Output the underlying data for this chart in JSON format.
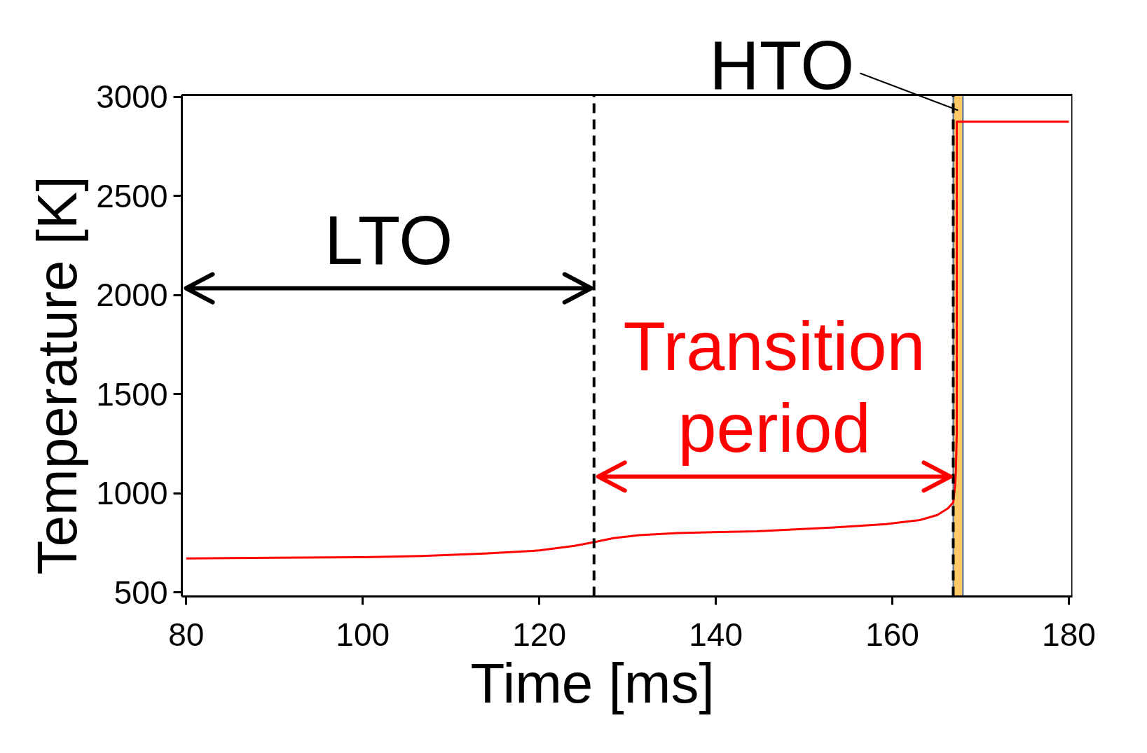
{
  "chart_data": {
    "type": "line",
    "xlabel": "Time [ms]",
    "ylabel": "Temperature [K]",
    "xlim": [
      79.5,
      180.4
    ],
    "ylim": [
      480,
      3010
    ],
    "xticks": [
      80,
      100,
      120,
      140,
      160,
      180
    ],
    "yticks": [
      500,
      1000,
      1500,
      2000,
      2500,
      3000
    ],
    "grid": false,
    "series": [
      {
        "color": "#ff0000",
        "x": [
          80,
          90,
          100,
          106.7,
          113.8,
          120,
          124,
          126.2,
          128.4,
          131.3,
          135.7,
          144.6,
          153.4,
          159.3,
          163.1,
          165.1,
          166.3,
          166.9,
          167.1,
          167.2,
          167.3,
          167.3,
          180
        ],
        "values": [
          672,
          675,
          678,
          684,
          696,
          712,
          735,
          754,
          774,
          789,
          800,
          809,
          828,
          845,
          865,
          891,
          924,
          954,
          1035,
          1110,
          1300,
          2875,
          2875
        ]
      }
    ],
    "ref_lines": [
      {
        "axis": "x",
        "value": 126.2,
        "color": "#000000",
        "line_style": "dashed"
      },
      {
        "axis": "x",
        "value": 166.9,
        "color": "#000000",
        "line_style": "dashed"
      }
    ],
    "bands": [
      {
        "axis": "x",
        "from": 166.9,
        "to": 168.0,
        "label": "HTO",
        "color": "#ffc966"
      }
    ],
    "annotations": [
      "LTO",
      "Transition\nperiod"
    ]
  }
}
